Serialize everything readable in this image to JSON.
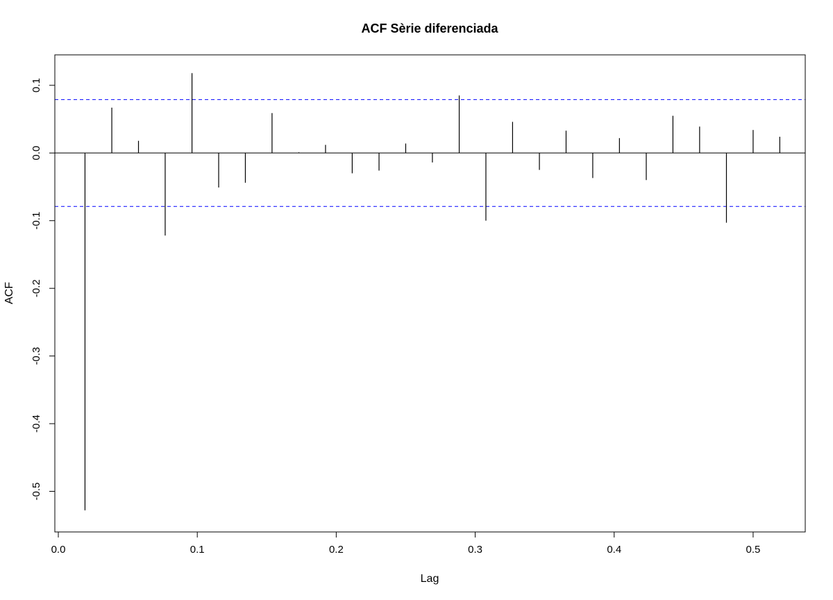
{
  "chart_data": {
    "type": "bar",
    "title": "ACF Sèrie diferenciada",
    "xlabel": "Lag",
    "ylabel": "ACF",
    "xlim": [
      -0.0025,
      0.5375
    ],
    "ylim": [
      -0.56,
      0.145
    ],
    "x_ticks": [
      "0.0",
      "0.1",
      "0.2",
      "0.3",
      "0.4",
      "0.5"
    ],
    "y_ticks": [
      "-0.5",
      "-0.4",
      "-0.3",
      "-0.2",
      "-0.1",
      "0.0",
      "0.1"
    ],
    "x_tick_values": [
      0.0,
      0.1,
      0.2,
      0.3,
      0.4,
      0.5
    ],
    "y_tick_values": [
      -0.5,
      -0.4,
      -0.3,
      -0.2,
      -0.1,
      0.0,
      0.1
    ],
    "confidence_bounds": [
      0.079,
      -0.079
    ],
    "zero_line": 0.0,
    "series": [
      {
        "x": [
          0.0192,
          0.0385,
          0.0577,
          0.0769,
          0.0962,
          0.1154,
          0.1346,
          0.1538,
          0.1731,
          0.1923,
          0.2115,
          0.2308,
          0.25,
          0.2692,
          0.2885,
          0.3077,
          0.3269,
          0.3462,
          0.3654,
          0.3846,
          0.4038,
          0.4231,
          0.4423,
          0.4615,
          0.4808,
          0.5,
          0.5192
        ],
        "values": [
          -0.528,
          0.067,
          0.018,
          -0.122,
          0.118,
          -0.051,
          -0.044,
          0.059,
          0.001,
          0.012,
          -0.03,
          -0.026,
          0.014,
          -0.014,
          0.085,
          -0.1,
          0.046,
          -0.025,
          0.033,
          -0.037,
          0.022,
          -0.04,
          0.055,
          0.039,
          -0.103,
          0.034,
          0.024
        ]
      }
    ],
    "colors": {
      "bars": "#000000",
      "bounds": "#0000ff",
      "axes": "#000000"
    },
    "grid": false
  }
}
